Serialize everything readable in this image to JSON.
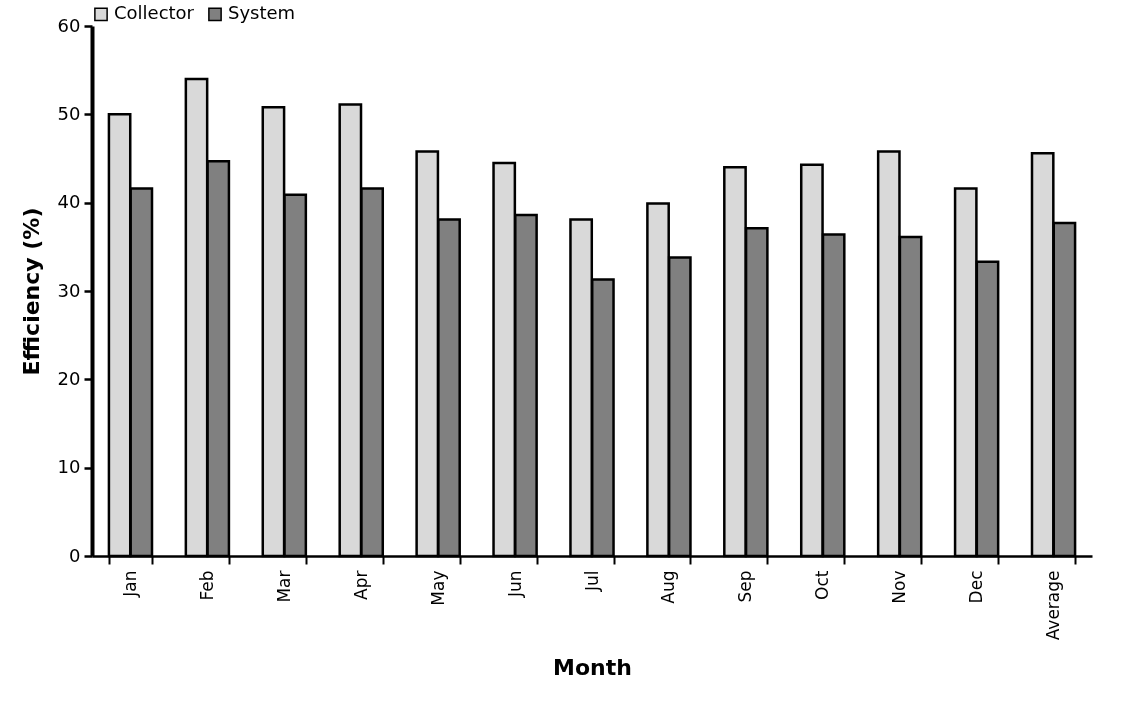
{
  "chart_data": {
    "type": "bar",
    "xlabel": "Month",
    "ylabel": "Efficiency (%)",
    "categories": [
      "Jan",
      "Feb",
      "Mar",
      "Apr",
      "May",
      "Jun",
      "Jul",
      "Aug",
      "Sep",
      "Oct",
      "Nov",
      "Dec",
      "Average"
    ],
    "series": [
      {
        "name": "Collector",
        "color": "#d9d9d9",
        "values": [
          50.0,
          54.0,
          50.8,
          51.1,
          45.8,
          44.5,
          38.1,
          39.9,
          44.0,
          44.3,
          45.8,
          41.6,
          45.6
        ]
      },
      {
        "name": "System",
        "color": "#808080",
        "values": [
          41.6,
          44.7,
          40.9,
          41.6,
          38.1,
          38.6,
          31.3,
          33.8,
          37.1,
          36.4,
          36.1,
          33.3,
          37.7
        ]
      }
    ],
    "ylim": [
      0,
      60
    ],
    "yticks": [
      0,
      10,
      20,
      30,
      40,
      50,
      60
    ],
    "grid": false,
    "legend": "top"
  }
}
